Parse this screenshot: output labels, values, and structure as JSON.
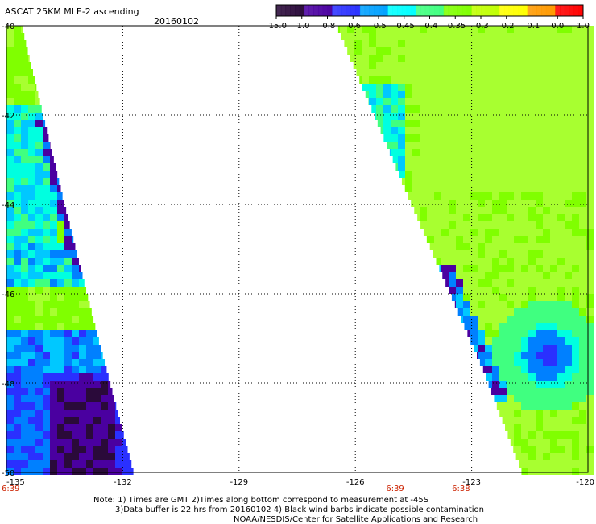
{
  "header": {
    "title": "ASCAT 25KM MLE-2 ascending",
    "date": "20160102"
  },
  "colorbar": {
    "labels": [
      "-15.0",
      "-1.0",
      "-0.8",
      "-0.6",
      "-0.5",
      "-0.45",
      "-0.4",
      "-0.35",
      "-0.3",
      "-0.2",
      "-0.1",
      "0.0",
      "1.0"
    ],
    "colors": [
      "#2a0a3a",
      "#4a00a0",
      "#2a30ff",
      "#00a0ff",
      "#00ffff",
      "#40ff80",
      "#80ff00",
      "#c0ff00",
      "#ffff00",
      "#ff9900",
      "#ff0000"
    ]
  },
  "map": {
    "lat_ticks": [
      "-40",
      "-42",
      "-44",
      "-46",
      "-48",
      "-50"
    ],
    "lon_ticks": [
      "-135",
      "-132",
      "-129",
      "-126",
      "-123",
      "-120"
    ],
    "lon_range": [
      -135,
      -120
    ],
    "lat_range": [
      -40,
      -50
    ],
    "time_labels": [
      {
        "text": "6:39",
        "lon": -135
      },
      {
        "text": "6:39",
        "lon": -125
      },
      {
        "text": "6:38",
        "lon": -123.3
      }
    ]
  },
  "notes": {
    "line1": "Note: 1) Times are GMT 2)Times along bottom correspond to measurement at -45S",
    "line2": "3)Data buffer is 22 hrs from 20160102 4) Black wind barbs indicate possible contamination",
    "line3": "NOAA/NESDIS/Center for Satellite Applications and Research"
  }
}
